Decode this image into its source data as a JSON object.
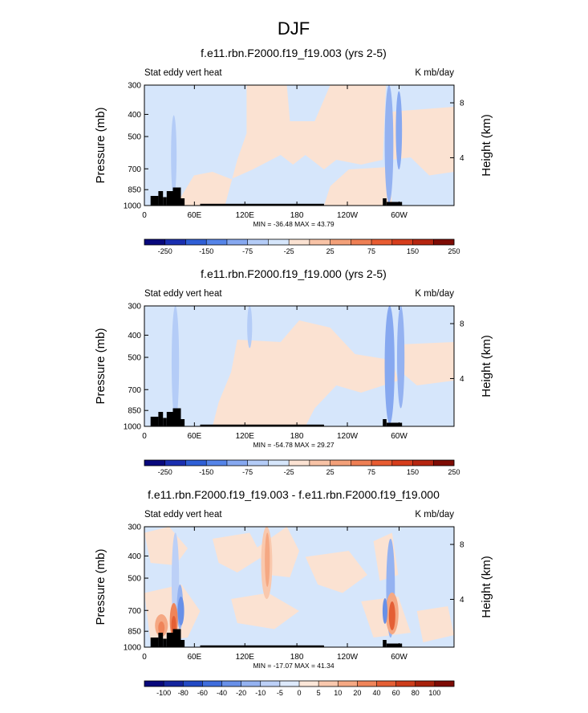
{
  "figure_title": "DJF",
  "chart_data": [
    {
      "type": "heatmap",
      "title": "f.e11.rbn.F2000.f19_f19.003 (yrs 2-5)",
      "left_string": "Stat eddy vert heat",
      "right_string": "K mb/day",
      "ylabel": "Pressure (mb)",
      "right_ylabel": "Height (km)",
      "y_ticks": [
        "300",
        "400",
        "500",
        "700",
        "850",
        "1000"
      ],
      "x_ticks": [
        "0",
        "60E",
        "120E",
        "180",
        "120W",
        "60W"
      ],
      "right_ticks": [
        "8",
        "4"
      ],
      "min_max": "MIN = -36.48  MAX =  43.79",
      "colorbar_labels": [
        "-250",
        "-150",
        "-75",
        "-25",
        "25",
        "75",
        "150",
        "250"
      ]
    },
    {
      "type": "heatmap",
      "title": "f.e11.rbn.F2000.f19_f19.000 (yrs 2-5)",
      "left_string": "Stat eddy vert heat",
      "right_string": "K mb/day",
      "ylabel": "Pressure (mb)",
      "right_ylabel": "Height (km)",
      "y_ticks": [
        "300",
        "400",
        "500",
        "700",
        "850",
        "1000"
      ],
      "x_ticks": [
        "0",
        "60E",
        "120E",
        "180",
        "120W",
        "60W"
      ],
      "right_ticks": [
        "8",
        "4"
      ],
      "min_max": "MIN = -54.78  MAX =  29.27",
      "colorbar_labels": [
        "-250",
        "-150",
        "-75",
        "-25",
        "25",
        "75",
        "150",
        "250"
      ]
    },
    {
      "type": "heatmap",
      "title": "f.e11.rbn.F2000.f19_f19.003 - f.e11.rbn.F2000.f19_f19.000",
      "left_string": "Stat eddy vert heat",
      "right_string": "K mb/day",
      "ylabel": "Pressure (mb)",
      "right_ylabel": "Height (km)",
      "y_ticks": [
        "300",
        "400",
        "500",
        "700",
        "850",
        "1000"
      ],
      "x_ticks": [
        "0",
        "60E",
        "120E",
        "180",
        "120W",
        "60W"
      ],
      "right_ticks": [
        "8",
        "4"
      ],
      "min_max": "MIN = -17.07  MAX =  41.34",
      "colorbar_labels": [
        "-100",
        "-80",
        "-60",
        "-40",
        "-20",
        "-10",
        "-5",
        "0",
        "5",
        "10",
        "20",
        "40",
        "60",
        "80",
        "100"
      ]
    }
  ],
  "colorbar_colors": [
    "#08087c",
    "#1a2fb0",
    "#2f5fd6",
    "#5584e8",
    "#86a8f0",
    "#b4ccf7",
    "#d6e6fb",
    "#fbe2d2",
    "#f8c3a6",
    "#f3a079",
    "#ee7f54",
    "#e85c32",
    "#d63d1c",
    "#b5250f",
    "#7e0b04"
  ],
  "colorbar_colors_diff": [
    "#08087c",
    "#14259e",
    "#2249c4",
    "#3f6ddc",
    "#6890e8",
    "#94b2f1",
    "#bcd0f7",
    "#dde9fc",
    "#fce6d8",
    "#f9c8ad",
    "#f5a883",
    "#ef8459",
    "#e45f35",
    "#cd3d1b",
    "#a8210c",
    "#7e0b04"
  ]
}
